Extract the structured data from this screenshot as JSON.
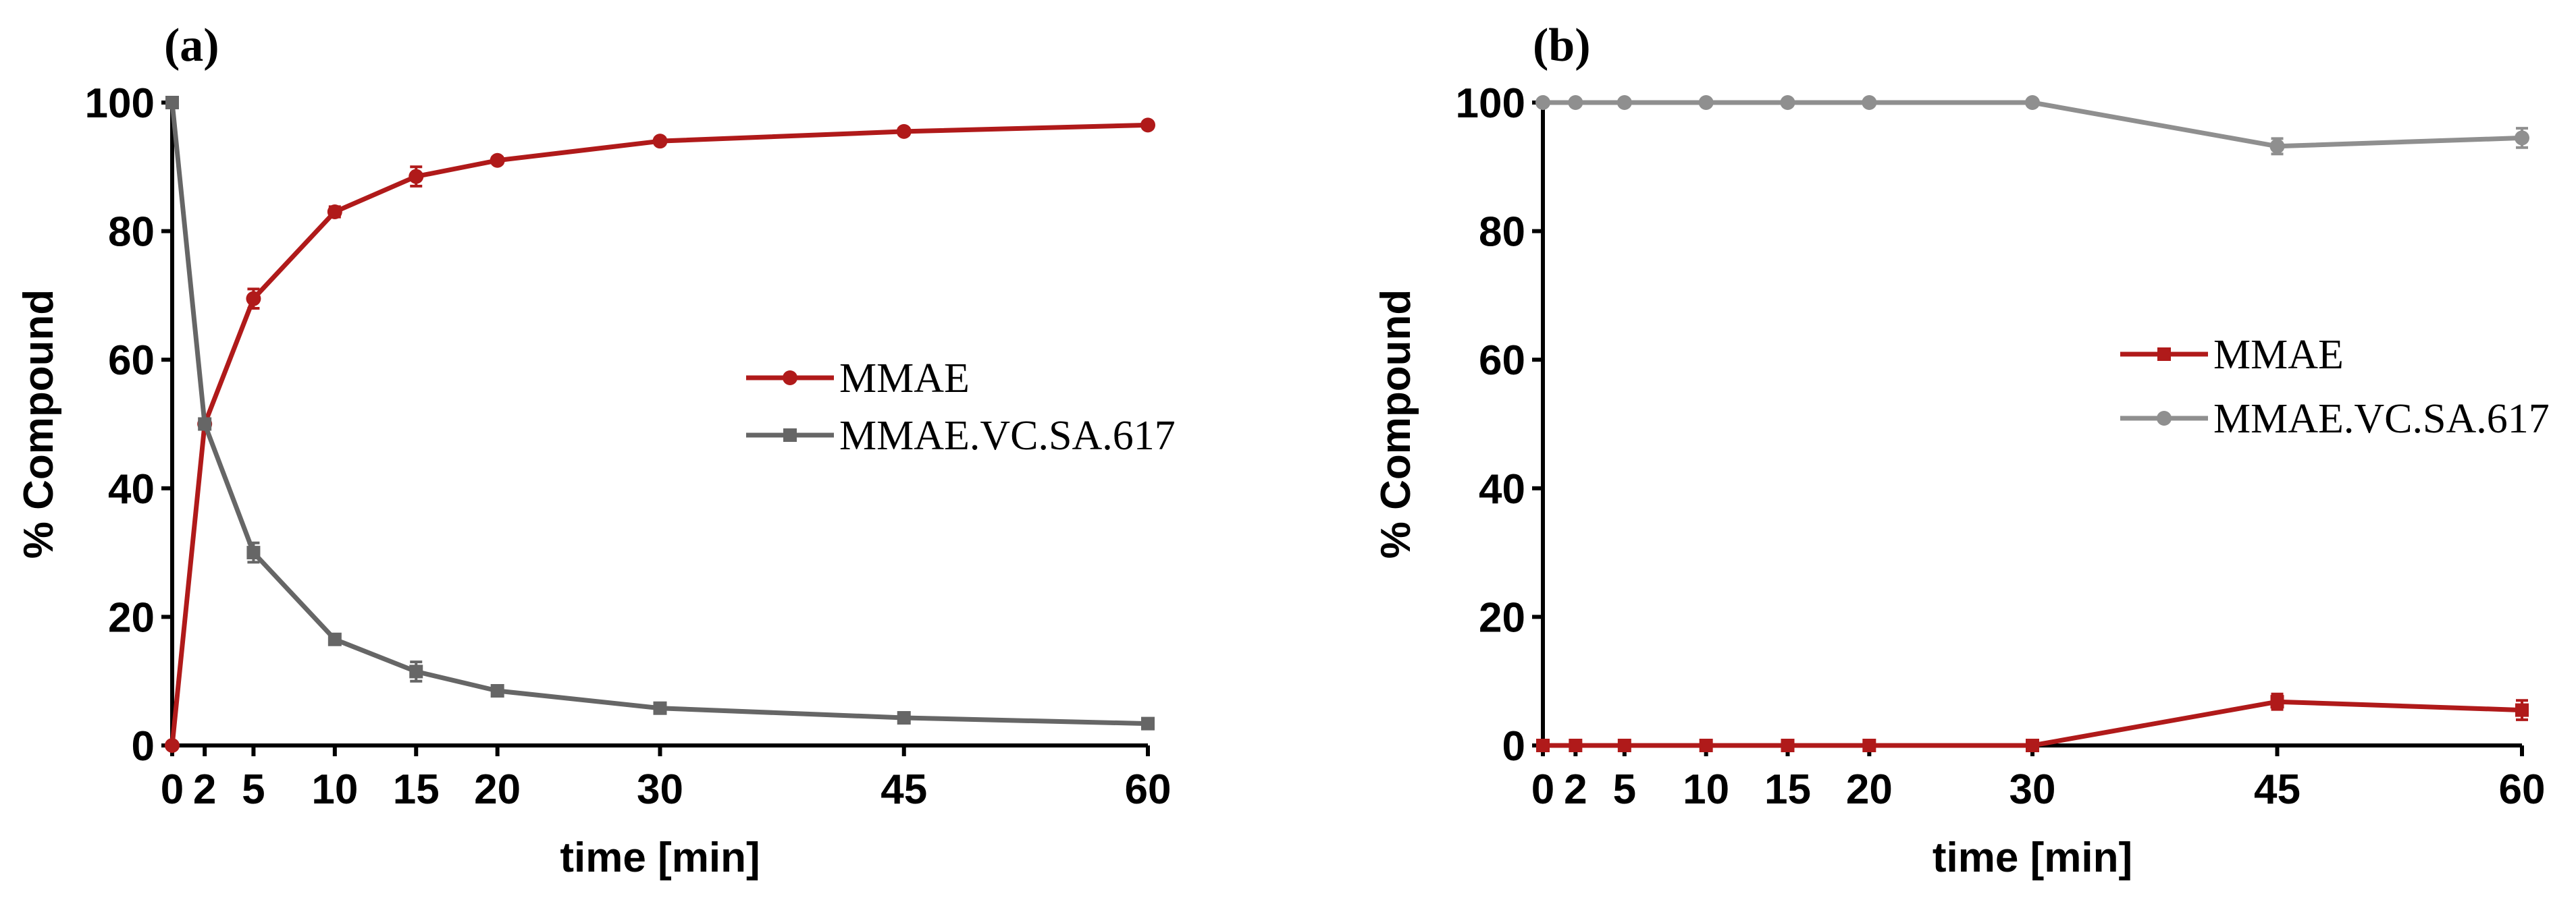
{
  "colors": {
    "mmae_red": "#b01a1a",
    "conj_dark_gray": "#666666",
    "conj_light_gray": "#8f8f8f",
    "axis": "#000000"
  },
  "chart_data": [
    {
      "id": "a",
      "type": "line",
      "panel_label": "(a)",
      "xlabel": "time [min]",
      "ylabel": "% Compound",
      "x": [
        0,
        2,
        5,
        10,
        15,
        20,
        30,
        45,
        60
      ],
      "x_tick_labels": [
        "0",
        "2",
        "5",
        "10",
        "15",
        "20",
        "30",
        "45",
        "60"
      ],
      "xlim": [
        0,
        60
      ],
      "ylim": [
        0,
        100
      ],
      "y_ticks": [
        0,
        20,
        40,
        60,
        80,
        100
      ],
      "y_tick_labels": [
        "0",
        "20",
        "40",
        "60",
        "80",
        "100"
      ],
      "legend_position": "center-right",
      "series": [
        {
          "name": "MMAE",
          "marker": "circle",
          "color": "#b01a1a",
          "values": [
            0,
            50,
            69.5,
            83,
            88.5,
            91,
            94,
            95.5,
            96.5
          ],
          "errors": [
            0,
            0,
            1.5,
            0.8,
            1.5,
            0.5,
            0.5,
            0.5,
            0.5
          ]
        },
        {
          "name": "MMAE.VC.SA.617",
          "marker": "square",
          "color": "#666666",
          "values": [
            100,
            50,
            30,
            16.5,
            11.5,
            8.5,
            5.8,
            4.3,
            3.4
          ],
          "errors": [
            0,
            0,
            1.5,
            0.8,
            1.5,
            0.5,
            0.5,
            0.5,
            0.5
          ]
        }
      ]
    },
    {
      "id": "b",
      "type": "line",
      "panel_label": "(b)",
      "xlabel": "time [min]",
      "ylabel": "% Compound",
      "x": [
        0,
        2,
        5,
        10,
        15,
        20,
        30,
        45,
        60
      ],
      "x_tick_labels": [
        "0",
        "2",
        "5",
        "10",
        "15",
        "20",
        "30",
        "45",
        "60"
      ],
      "xlim": [
        0,
        60
      ],
      "ylim": [
        0,
        100
      ],
      "y_ticks": [
        0,
        20,
        40,
        60,
        80,
        100
      ],
      "y_tick_labels": [
        "0",
        "20",
        "40",
        "60",
        "80",
        "100"
      ],
      "legend_position": "center-right",
      "series": [
        {
          "name": "MMAE",
          "marker": "square",
          "color": "#b01a1a",
          "values": [
            0,
            0,
            0,
            0,
            0,
            0,
            0,
            6.8,
            5.5
          ],
          "errors": [
            0,
            0,
            0,
            0,
            0,
            0,
            0,
            1.2,
            1.5
          ]
        },
        {
          "name": "MMAE.VC.SA.617",
          "marker": "circle",
          "color": "#8f8f8f",
          "values": [
            100,
            100,
            100,
            100,
            100,
            100,
            100,
            93.2,
            94.5
          ],
          "errors": [
            0,
            0,
            0,
            0,
            0,
            0,
            0,
            1.2,
            1.5
          ]
        }
      ]
    }
  ]
}
